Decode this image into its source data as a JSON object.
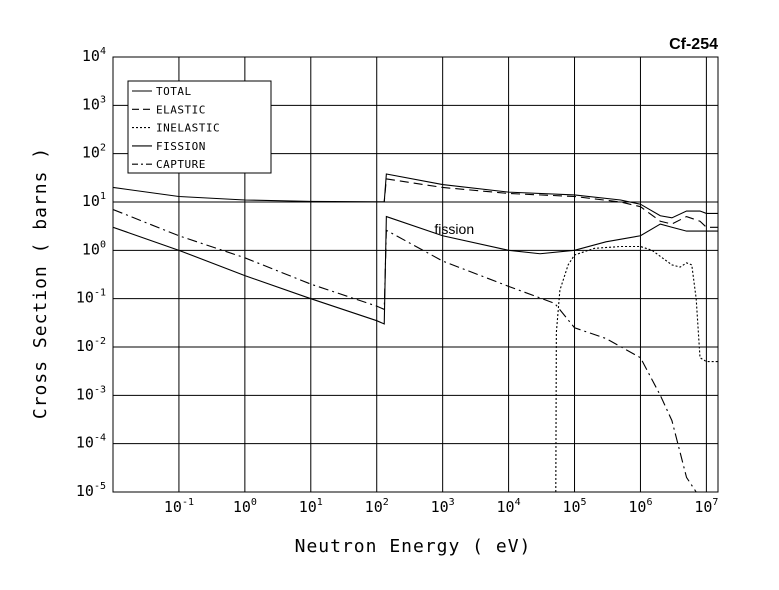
{
  "chart_data": {
    "type": "line",
    "title": "Cf-254",
    "xlabel": "Neutron Energy ( eV)",
    "ylabel": "Cross Section ( barns )",
    "x_scale": "log",
    "y_scale": "log",
    "xlim": [
      0.01,
      15000000
    ],
    "ylim": [
      1e-05,
      10000
    ],
    "grid": true,
    "legend_position": "top-left",
    "x_ticks": [
      {
        "value": 0.1,
        "base": "10",
        "exp": "-1"
      },
      {
        "value": 1,
        "base": "10",
        "exp": "0"
      },
      {
        "value": 10,
        "base": "10",
        "exp": "1"
      },
      {
        "value": 100,
        "base": "10",
        "exp": "2"
      },
      {
        "value": 1000,
        "base": "10",
        "exp": "3"
      },
      {
        "value": 10000,
        "base": "10",
        "exp": "4"
      },
      {
        "value": 100000,
        "base": "10",
        "exp": "5"
      },
      {
        "value": 1000000,
        "base": "10",
        "exp": "6"
      },
      {
        "value": 10000000,
        "base": "10",
        "exp": "7"
      }
    ],
    "y_ticks": [
      {
        "value": 1e-05,
        "base": "10",
        "exp": "-5"
      },
      {
        "value": 0.0001,
        "base": "10",
        "exp": "-4"
      },
      {
        "value": 0.001,
        "base": "10",
        "exp": "-3"
      },
      {
        "value": 0.01,
        "base": "10",
        "exp": "-2"
      },
      {
        "value": 0.1,
        "base": "10",
        "exp": "-1"
      },
      {
        "value": 1,
        "base": "10",
        "exp": "0"
      },
      {
        "value": 10,
        "base": "10",
        "exp": "1"
      },
      {
        "value": 100,
        "base": "10",
        "exp": "2"
      },
      {
        "value": 1000,
        "base": "10",
        "exp": "3"
      },
      {
        "value": 10000,
        "base": "10",
        "exp": "4"
      }
    ],
    "series": [
      {
        "name": "TOTAL",
        "dash": "solid",
        "x": [
          0.01,
          0.1,
          1,
          10,
          100,
          130,
          140,
          1000,
          10000,
          100000,
          500000,
          1000000,
          2000000,
          3000000,
          5000000,
          8000000,
          10000000,
          15000000
        ],
        "y": [
          20,
          13,
          11,
          10.3,
          10.1,
          10.1,
          38,
          23,
          16,
          14,
          11,
          9,
          5.2,
          4.7,
          6.5,
          6.5,
          5.8,
          5.8
        ]
      },
      {
        "name": "ELASTIC",
        "dash": "dash",
        "x": [
          0.01,
          0.1,
          1,
          10,
          100,
          130,
          140,
          1000,
          10000,
          100000,
          500000,
          1000000,
          2000000,
          3000000,
          5000000,
          8000000,
          10000000,
          15000000
        ],
        "y": [
          10,
          10,
          10,
          10,
          10,
          10,
          30,
          20,
          15,
          13,
          10,
          8,
          4,
          3.5,
          5,
          4,
          3,
          3
        ]
      },
      {
        "name": "INELASTIC",
        "dash": "dot",
        "x": [
          52000,
          53000,
          60000,
          80000,
          100000,
          200000,
          500000,
          1000000,
          1500000,
          3000000,
          4000000,
          5000000,
          6000000,
          7000000,
          8000000,
          10000000,
          15000000
        ],
        "y": [
          1e-05,
          0.02,
          0.15,
          0.5,
          0.8,
          1.1,
          1.2,
          1.2,
          1.0,
          0.5,
          0.45,
          0.55,
          0.5,
          0.1,
          0.006,
          0.005,
          0.005
        ]
      },
      {
        "name": "FISSION",
        "dash": "solid",
        "x": [
          0.01,
          0.1,
          1,
          10,
          100,
          130,
          140,
          1000,
          10000,
          30000,
          100000,
          300000,
          1000000,
          2000000,
          3000000,
          5000000,
          10000000,
          15000000
        ],
        "y": [
          3,
          1,
          0.3,
          0.1,
          0.035,
          0.03,
          5,
          2,
          1,
          0.85,
          1,
          1.5,
          2,
          3.5,
          3,
          2.5,
          2.5,
          2.5
        ]
      },
      {
        "name": "CAPTURE",
        "dash": "dashdot",
        "x": [
          0.01,
          0.1,
          1,
          10,
          100,
          130,
          140,
          1000,
          10000,
          50000,
          100000,
          300000,
          1000000,
          2000000,
          3000000,
          5000000,
          7000000
        ],
        "y": [
          7,
          2,
          0.7,
          0.2,
          0.07,
          0.06,
          2.6,
          0.6,
          0.18,
          0.08,
          0.025,
          0.015,
          0.006,
          0.001,
          0.0003,
          2e-05,
          1e-05
        ]
      }
    ],
    "annotations": [
      {
        "text": "fission",
        "x": 1500,
        "y": 2.2
      }
    ]
  }
}
